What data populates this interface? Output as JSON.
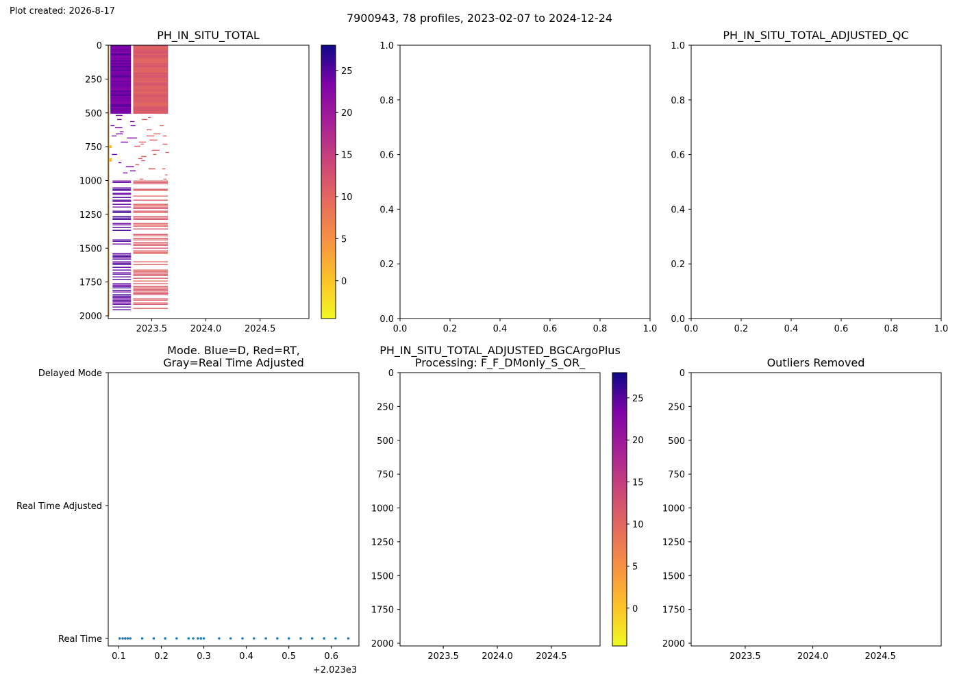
{
  "figure": {
    "created_label": "Plot created: 2026-8-17",
    "suptitle": "7900943, 78 profiles, 2023-02-07 to 2024-12-24"
  },
  "chart_data": [
    {
      "id": "raw",
      "type": "heatmap",
      "title": "PH_IN_SITU_TOTAL",
      "xlim": [
        2023.1,
        2024.95
      ],
      "ylim": [
        2020,
        0
      ],
      "xticks": [
        2023.5,
        2024.0,
        2024.5
      ],
      "xtick_labels": [
        "2023.5",
        "2024.0",
        "2024.5"
      ],
      "yticks": [
        0,
        250,
        500,
        750,
        1000,
        1250,
        1500,
        1750,
        2000
      ],
      "ytick_labels": [
        "0",
        "250",
        "500",
        "750",
        "1000",
        "1250",
        "1500",
        "1750",
        "2000"
      ],
      "colormap": "plasma_r",
      "colorbar": {
        "range": [
          -4.5,
          28
        ],
        "ticks": [
          0,
          5,
          10,
          15,
          20,
          25
        ],
        "tick_labels": [
          "0",
          "5",
          "10",
          "15",
          "20",
          "25"
        ]
      },
      "data_extent": {
        "time": [
          2023.1,
          2023.65
        ],
        "pres": [
          0,
          2000
        ]
      },
      "bands": [
        {
          "t0": 2023.1,
          "t1": 2023.11,
          "p0": 0,
          "p1": 2000,
          "value": 3
        },
        {
          "t0": 2023.12,
          "t1": 2023.31,
          "p0": 0,
          "p1": 500,
          "value": 24
        },
        {
          "t0": 2023.33,
          "t1": 2023.65,
          "p0": 0,
          "p1": 500,
          "value": 11
        },
        {
          "t0": 2023.14,
          "t1": 2023.31,
          "p0": 1000,
          "p1": 1980,
          "value": 25
        },
        {
          "t0": 2023.33,
          "t1": 2023.65,
          "p0": 1000,
          "p1": 1950,
          "value": 11
        }
      ]
    },
    {
      "id": "adjusted_qc",
      "type": "scatter",
      "title": "PH_IN_SITU_TOTAL_ADJUSTED_QC",
      "xlim": [
        0,
        1
      ],
      "ylim": [
        0,
        1
      ],
      "ticks": [
        0.0,
        0.2,
        0.4,
        0.6,
        0.8,
        1.0
      ],
      "tick_labels": [
        "0.0",
        "0.2",
        "0.4",
        "0.6",
        "0.8",
        "1.0"
      ],
      "empty_axes": 2
    },
    {
      "id": "mode",
      "type": "scatter",
      "title_lines": [
        "Mode. Blue=D, Red=RT,",
        "Gray=Real Time Adjusted"
      ],
      "xlim": [
        0.075,
        0.665
      ],
      "xticks": [
        0.1,
        0.2,
        0.3,
        0.4,
        0.5,
        0.6
      ],
      "xtick_labels": [
        "0.1",
        "0.2",
        "0.3",
        "0.4",
        "0.5",
        "0.6"
      ],
      "x_offset_label": "+2.023e3",
      "categories": [
        "Delayed Mode",
        "Real Time Adjusted",
        "Real Time"
      ],
      "series": [
        {
          "category": "Real Time",
          "color": "#1f77b4",
          "x": [
            0.102,
            0.109,
            0.115,
            0.121,
            0.127,
            0.155,
            0.182,
            0.209,
            0.236,
            0.264,
            0.275,
            0.286,
            0.293,
            0.3,
            0.336,
            0.363,
            0.391,
            0.418,
            0.446,
            0.473,
            0.5,
            0.528,
            0.555,
            0.583,
            0.61,
            0.64
          ]
        }
      ]
    },
    {
      "id": "bgcargoplus",
      "type": "heatmap",
      "title_lines": [
        "PH_IN_SITU_TOTAL_ADJUSTED_BGCArgoPlus",
        "Processing: F_F_DMonly_S_OR_"
      ],
      "xlim": [
        2023.1,
        2024.95
      ],
      "ylim": [
        2020,
        0
      ],
      "xticks": [
        2023.5,
        2024.0,
        2024.5
      ],
      "xtick_labels": [
        "2023.5",
        "2024.0",
        "2024.5"
      ],
      "yticks": [
        0,
        250,
        500,
        750,
        1000,
        1250,
        1500,
        1750,
        2000
      ],
      "ytick_labels": [
        "0",
        "250",
        "500",
        "750",
        "1000",
        "1250",
        "1500",
        "1750",
        "2000"
      ],
      "colormap": "plasma_r",
      "colorbar": {
        "range": [
          -4.5,
          28
        ],
        "ticks": [
          0,
          5,
          10,
          15,
          20,
          25
        ],
        "tick_labels": [
          "0",
          "5",
          "10",
          "15",
          "20",
          "25"
        ]
      }
    },
    {
      "id": "outliers",
      "type": "heatmap",
      "title": "Outliers Removed",
      "xlim": [
        2023.1,
        2024.95
      ],
      "ylim": [
        2020,
        0
      ],
      "xticks": [
        2023.5,
        2024.0,
        2024.5
      ],
      "xtick_labels": [
        "2023.5",
        "2024.0",
        "2024.5"
      ],
      "yticks": [
        0,
        250,
        500,
        750,
        1000,
        1250,
        1500,
        1750,
        2000
      ],
      "ytick_labels": [
        "0",
        "250",
        "500",
        "750",
        "1000",
        "1250",
        "1500",
        "1750",
        "2000"
      ]
    }
  ]
}
